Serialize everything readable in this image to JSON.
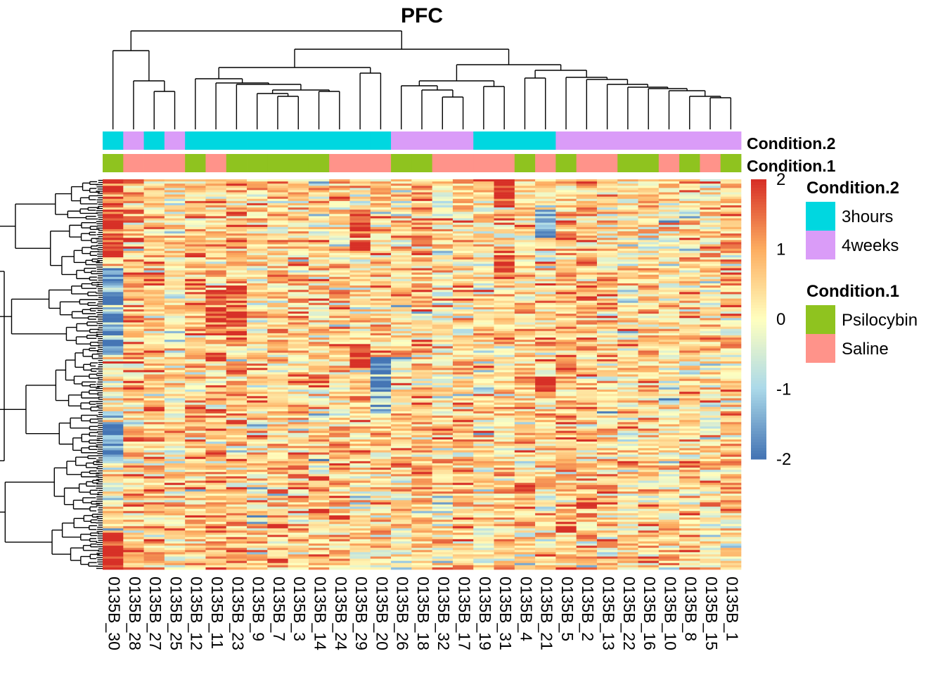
{
  "colors": {
    "3hours": "#00D7E0",
    "4weeks": "#DA9CF8",
    "Psilocybin": "#8FC31F",
    "Saline": "#FF938A",
    "scale_low": "#4575B4",
    "scale_mid": "#FFFFBF",
    "scale_high": "#D73027"
  },
  "chart_data": {
    "type": "heatmap",
    "title": "PFC",
    "columns": [
      "0135B_30",
      "0135B_28",
      "0135B_27",
      "0135B_25",
      "0135B_12",
      "0135B_11",
      "0135B_23",
      "0135B_9",
      "0135B_7",
      "0135B_3",
      "0135B_14",
      "0135B_24",
      "0135B_29",
      "0135B_20",
      "0135B_26",
      "0135B_18",
      "0135B_32",
      "0135B_17",
      "0135B_19",
      "0135B_31",
      "0135B_4",
      "0135B_21",
      "0135B_5",
      "0135B_2",
      "0135B_13",
      "0135B_22",
      "0135B_16",
      "0135B_10",
      "0135B_8",
      "0135B_15",
      "0135B_1"
    ],
    "annotations": [
      {
        "name": "Condition.2",
        "values": [
          "3hours",
          "4weeks",
          "3hours",
          "4weeks",
          "3hours",
          "3hours",
          "3hours",
          "3hours",
          "3hours",
          "3hours",
          "3hours",
          "3hours",
          "3hours",
          "3hours",
          "4weeks",
          "4weeks",
          "4weeks",
          "4weeks",
          "3hours",
          "3hours",
          "3hours",
          "3hours",
          "4weeks",
          "4weeks",
          "4weeks",
          "4weeks",
          "4weeks",
          "4weeks",
          "4weeks",
          "4weeks",
          "4weeks"
        ]
      },
      {
        "name": "Condition.1",
        "values": [
          "Psilocybin",
          "Saline",
          "Saline",
          "Saline",
          "Psilocybin",
          "Saline",
          "Psilocybin",
          "Psilocybin",
          "Psilocybin",
          "Psilocybin",
          "Psilocybin",
          "Saline",
          "Saline",
          "Saline",
          "Psilocybin",
          "Psilocybin",
          "Saline",
          "Saline",
          "Saline",
          "Saline",
          "Psilocybin",
          "Saline",
          "Psilocybin",
          "Saline",
          "Saline",
          "Psilocybin",
          "Psilocybin",
          "Saline",
          "Psilocybin",
          "Saline",
          "Psilocybin"
        ]
      }
    ],
    "legends": [
      {
        "title": "Condition.2",
        "items": [
          "3hours",
          "4weeks"
        ]
      },
      {
        "title": "Condition.1",
        "items": [
          "Psilocybin",
          "Saline"
        ]
      }
    ],
    "color_scale": {
      "min": -2,
      "max": 2,
      "ticks": [
        "2",
        "1",
        "0",
        "-1",
        "-2"
      ]
    },
    "row_count": 180,
    "grid": false,
    "legend_position": "right"
  }
}
